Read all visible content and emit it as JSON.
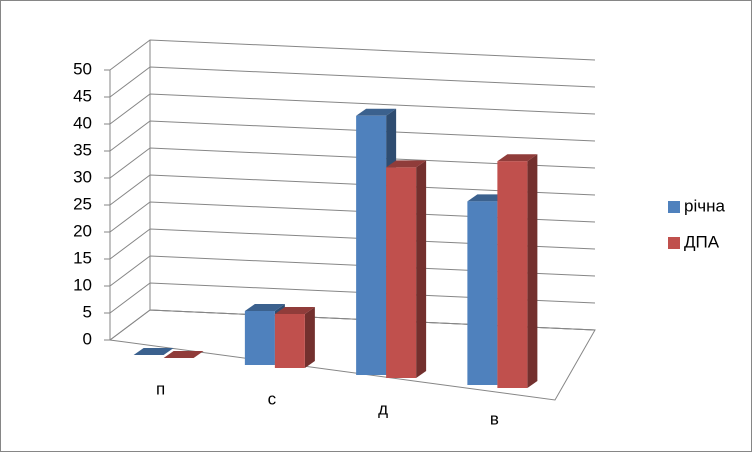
{
  "chart_data": {
    "type": "bar3d",
    "categories": [
      "п",
      "с",
      "д",
      "в"
    ],
    "series": [
      {
        "name": "річна",
        "color": "#4f81bd",
        "values": [
          0,
          10,
          48,
          34
        ]
      },
      {
        "name": "ДПА",
        "color": "#c0504d",
        "values": [
          0,
          10,
          39,
          42
        ]
      }
    ],
    "ylim": [
      0,
      50
    ],
    "yticks": [
      0,
      5,
      10,
      15,
      20,
      25,
      30,
      35,
      40,
      45,
      50
    ],
    "grid": true,
    "legend": "right"
  }
}
